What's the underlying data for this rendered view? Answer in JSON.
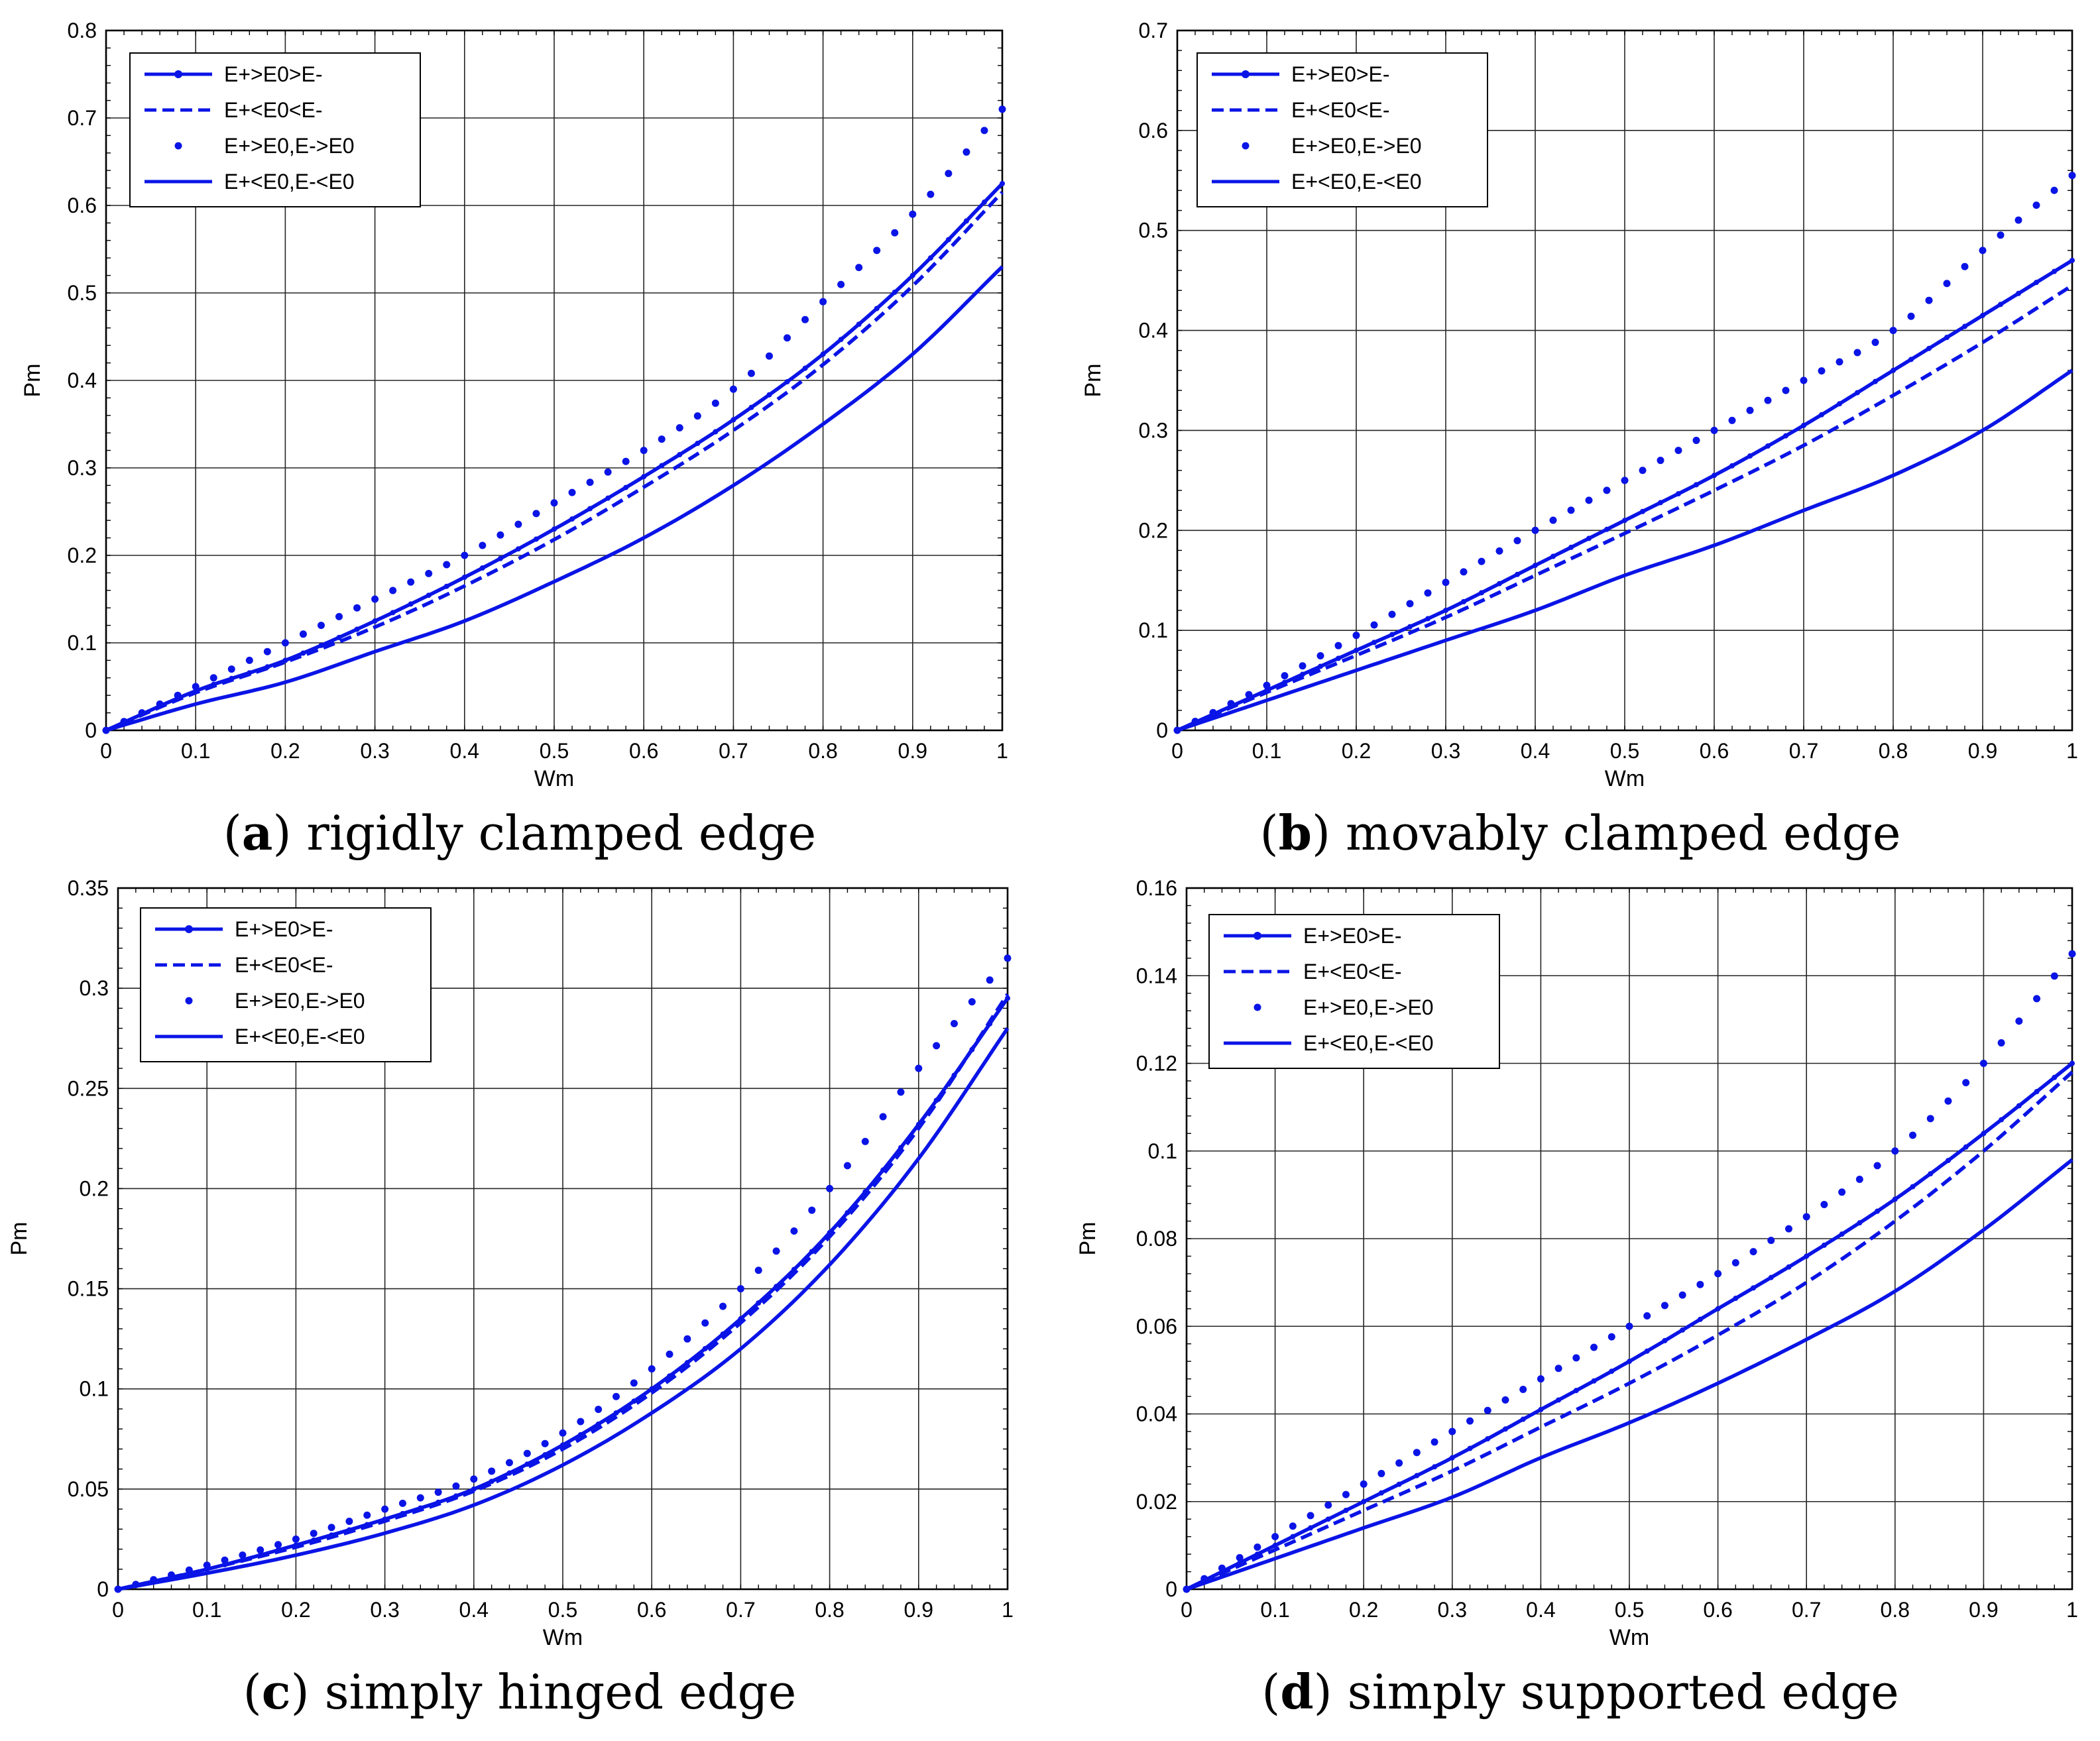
{
  "figure": {
    "colors": {
      "series": "#0a14e6",
      "grid": "#262626",
      "axis": "#000000",
      "legend_text": "#000000"
    },
    "legend_labels": [
      "E+>E0>E-",
      "E+<E0<E-",
      "E+>E0,E->E0",
      "E+<E0,E-<E0"
    ]
  },
  "chart_data": [
    {
      "type": "line",
      "caption": {
        "tag": "a",
        "text": "rigidly clamped edge"
      },
      "xlabel": "Wm",
      "ylabel": "Pm",
      "xlim": [
        0,
        1
      ],
      "ylim": [
        0,
        0.8
      ],
      "xticks": [
        "0",
        "0.1",
        "0.2",
        "0.3",
        "0.4",
        "0.5",
        "0.6",
        "0.7",
        "0.8",
        "0.9",
        "1"
      ],
      "yticks": [
        "0",
        "0.1",
        "0.2",
        "0.3",
        "0.4",
        "0.5",
        "0.6",
        "0.7",
        "0.8"
      ],
      "grid": true,
      "legend_position": "top-left",
      "x": [
        0,
        0.1,
        0.2,
        0.3,
        0.4,
        0.5,
        0.6,
        0.7,
        0.8,
        0.9,
        1
      ],
      "series": [
        {
          "name": "E+>E0>E-",
          "style": "solid-dot",
          "values": [
            0,
            0.045,
            0.08,
            0.125,
            0.175,
            0.23,
            0.29,
            0.355,
            0.43,
            0.52,
            0.625
          ]
        },
        {
          "name": "E+<E0<E-",
          "style": "dashed",
          "values": [
            0,
            0.043,
            0.078,
            0.118,
            0.165,
            0.218,
            0.278,
            0.343,
            0.418,
            0.508,
            0.615
          ]
        },
        {
          "name": "E+>E0,E->E0",
          "style": "dotted",
          "values": [
            0,
            0.05,
            0.1,
            0.15,
            0.2,
            0.26,
            0.32,
            0.39,
            0.49,
            0.59,
            0.71
          ]
        },
        {
          "name": "E+<E0,E-<E0",
          "style": "solid",
          "values": [
            0,
            0.03,
            0.055,
            0.09,
            0.125,
            0.17,
            0.22,
            0.28,
            0.35,
            0.43,
            0.53
          ]
        }
      ]
    },
    {
      "type": "line",
      "caption": {
        "tag": "b",
        "text": "movably clamped edge"
      },
      "xlabel": "Wm",
      "ylabel": "Pm",
      "xlim": [
        0,
        1
      ],
      "ylim": [
        0,
        0.7
      ],
      "xticks": [
        "0",
        "0.1",
        "0.2",
        "0.3",
        "0.4",
        "0.5",
        "0.6",
        "0.7",
        "0.8",
        "0.9",
        "1"
      ],
      "yticks": [
        "0",
        "0.1",
        "0.2",
        "0.3",
        "0.4",
        "0.5",
        "0.6",
        "0.7"
      ],
      "grid": true,
      "legend_position": "top-left",
      "x": [
        0,
        0.1,
        0.2,
        0.3,
        0.4,
        0.5,
        0.6,
        0.7,
        0.8,
        0.9,
        1
      ],
      "series": [
        {
          "name": "E+>E0>E-",
          "style": "solid-dot",
          "values": [
            0,
            0.04,
            0.08,
            0.12,
            0.165,
            0.21,
            0.255,
            0.305,
            0.36,
            0.415,
            0.47
          ]
        },
        {
          "name": "E+<E0<E-",
          "style": "dashed",
          "values": [
            0,
            0.038,
            0.075,
            0.113,
            0.155,
            0.197,
            0.24,
            0.285,
            0.335,
            0.388,
            0.445
          ]
        },
        {
          "name": "E+>E0,E->E0",
          "style": "dotted",
          "values": [
            0,
            0.045,
            0.095,
            0.148,
            0.2,
            0.25,
            0.3,
            0.35,
            0.4,
            0.48,
            0.555
          ]
        },
        {
          "name": "E+<E0,E-<E0",
          "style": "solid",
          "values": [
            0,
            0.03,
            0.06,
            0.09,
            0.12,
            0.155,
            0.185,
            0.22,
            0.255,
            0.3,
            0.36
          ]
        }
      ]
    },
    {
      "type": "line",
      "caption": {
        "tag": "c",
        "text": "simply hinged edge"
      },
      "xlabel": "Wm",
      "ylabel": "Pm",
      "xlim": [
        0,
        1
      ],
      "ylim": [
        0,
        0.35
      ],
      "xticks": [
        "0",
        "0.1",
        "0.2",
        "0.3",
        "0.4",
        "0.5",
        "0.6",
        "0.7",
        "0.8",
        "0.9",
        "1"
      ],
      "yticks": [
        "0",
        "0.05",
        "0.1",
        "0.15",
        "0.2",
        "0.25",
        "0.3",
        "0.35"
      ],
      "grid": true,
      "legend_position": "top-left",
      "x": [
        0,
        0.1,
        0.2,
        0.3,
        0.4,
        0.5,
        0.6,
        0.7,
        0.8,
        0.9,
        1
      ],
      "series": [
        {
          "name": "E+>E0>E-",
          "style": "solid-dot",
          "values": [
            0,
            0.01,
            0.022,
            0.035,
            0.05,
            0.072,
            0.1,
            0.135,
            0.178,
            0.232,
            0.295
          ]
        },
        {
          "name": "E+<E0<E-",
          "style": "dashed",
          "values": [
            0,
            0.01,
            0.021,
            0.034,
            0.049,
            0.07,
            0.098,
            0.133,
            0.176,
            0.23,
            0.297
          ]
        },
        {
          "name": "E+>E0,E->E0",
          "style": "dotted",
          "values": [
            0,
            0.012,
            0.025,
            0.04,
            0.055,
            0.078,
            0.11,
            0.15,
            0.2,
            0.26,
            0.315
          ]
        },
        {
          "name": "E+<E0,E-<E0",
          "style": "solid",
          "values": [
            0,
            0.008,
            0.017,
            0.028,
            0.042,
            0.062,
            0.088,
            0.12,
            0.162,
            0.215,
            0.28
          ]
        }
      ]
    },
    {
      "type": "line",
      "caption": {
        "tag": "d",
        "text": "simply supported edge"
      },
      "xlabel": "Wm",
      "ylabel": "Pm",
      "xlim": [
        0,
        1
      ],
      "ylim": [
        0,
        0.16
      ],
      "xticks": [
        "0",
        "0.1",
        "0.2",
        "0.3",
        "0.4",
        "0.5",
        "0.6",
        "0.7",
        "0.8",
        "0.9",
        "1"
      ],
      "yticks": [
        "0",
        "0.02",
        "0.04",
        "0.06",
        "0.08",
        "0.1",
        "0.12",
        "0.14",
        "0.16"
      ],
      "grid": true,
      "legend_position": "top-left",
      "x": [
        0,
        0.1,
        0.2,
        0.3,
        0.4,
        0.5,
        0.6,
        0.7,
        0.8,
        0.9,
        1
      ],
      "series": [
        {
          "name": "E+>E0>E-",
          "style": "solid-dot",
          "values": [
            0,
            0.01,
            0.02,
            0.03,
            0.041,
            0.052,
            0.064,
            0.076,
            0.089,
            0.104,
            0.12
          ]
        },
        {
          "name": "E+<E0<E-",
          "style": "dashed",
          "values": [
            0,
            0.009,
            0.018,
            0.027,
            0.037,
            0.047,
            0.058,
            0.07,
            0.084,
            0.1,
            0.118
          ]
        },
        {
          "name": "E+>E0,E->E0",
          "style": "dotted",
          "values": [
            0,
            0.012,
            0.024,
            0.036,
            0.048,
            0.06,
            0.072,
            0.085,
            0.1,
            0.12,
            0.145
          ]
        },
        {
          "name": "E+<E0,E-<E0",
          "style": "solid",
          "values": [
            0,
            0.007,
            0.014,
            0.021,
            0.03,
            0.038,
            0.047,
            0.057,
            0.068,
            0.082,
            0.098
          ]
        }
      ]
    }
  ]
}
